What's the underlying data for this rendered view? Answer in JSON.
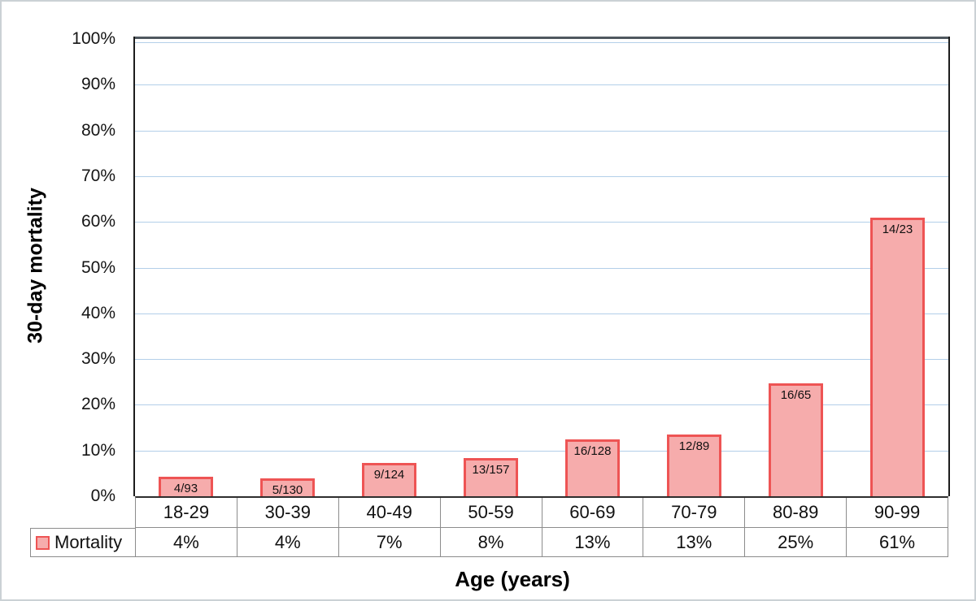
{
  "chart_data": {
    "type": "bar",
    "title": "",
    "xlabel": "Age (years)",
    "ylabel": "30-day mortality",
    "categories": [
      "18-29",
      "30-39",
      "40-49",
      "50-59",
      "60-69",
      "70-79",
      "80-89",
      "90-99"
    ],
    "series": [
      {
        "name": "Mortality",
        "values_percent": [
          4.3,
          3.85,
          7.26,
          8.28,
          12.5,
          13.48,
          24.62,
          60.87
        ],
        "bar_labels": [
          "4/93",
          "5/130",
          "9/124",
          "13/157",
          "16/128",
          "12/89",
          "16/65",
          "14/23"
        ],
        "table_values": [
          "4%",
          "4%",
          "7%",
          "8%",
          "13%",
          "13%",
          "25%",
          "61%"
        ]
      }
    ],
    "ylim": [
      0,
      100
    ],
    "ytick_step": 10,
    "ytick_labels": [
      "0%",
      "10%",
      "20%",
      "30%",
      "40%",
      "50%",
      "60%",
      "70%",
      "80%",
      "90%",
      "100%"
    ],
    "grid": "horizontal",
    "legend_position": "table-left",
    "colors": {
      "bar_fill": "#f6acac",
      "bar_border": "#ee5454",
      "gridline": "#b3cfe9",
      "plot_border_top": "#4f585f",
      "plot_border_side": "#1c1c1c",
      "axis_line": "#2e2e2e",
      "table_border": "#8c8c8c"
    }
  }
}
